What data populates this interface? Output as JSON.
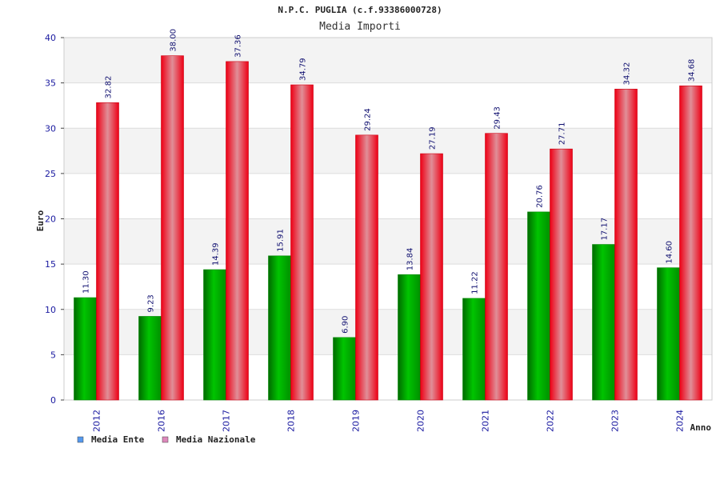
{
  "chart_data": {
    "type": "bar",
    "title": "N.P.C. PUGLIA (c.f.93386000728)",
    "subtitle": "Media Importi",
    "xlabel": "Anno",
    "ylabel": "Euro",
    "ylim": [
      0,
      40
    ],
    "yticks": [
      0,
      5,
      10,
      15,
      20,
      25,
      30,
      35,
      40
    ],
    "grid": true,
    "categories": [
      "2012",
      "2016",
      "2017",
      "2018",
      "2019",
      "2020",
      "2021",
      "2022",
      "2023",
      "2024"
    ],
    "series": [
      {
        "name": "Media Ente",
        "values": [
          11.3,
          9.23,
          14.39,
          15.91,
          6.9,
          13.84,
          11.22,
          20.76,
          17.17,
          14.6
        ],
        "labels": [
          "11.30",
          "9.23",
          "14.39",
          "15.91",
          "6.90",
          "13.84",
          "11.22",
          "20.76",
          "17.17",
          "14.60"
        ],
        "color": "#00bb00",
        "legend_color": "#5599ee"
      },
      {
        "name": "Media Nazionale",
        "values": [
          32.82,
          38.0,
          37.36,
          34.79,
          29.24,
          27.19,
          29.43,
          27.71,
          34.32,
          34.68
        ],
        "labels": [
          "32.82",
          "38.00",
          "37.36",
          "34.79",
          "29.24",
          "27.19",
          "29.43",
          "27.71",
          "34.32",
          "34.68"
        ],
        "color": "#ee1122",
        "legend_color": "#dd88bb"
      }
    ],
    "legend_position": "bottom-left"
  }
}
